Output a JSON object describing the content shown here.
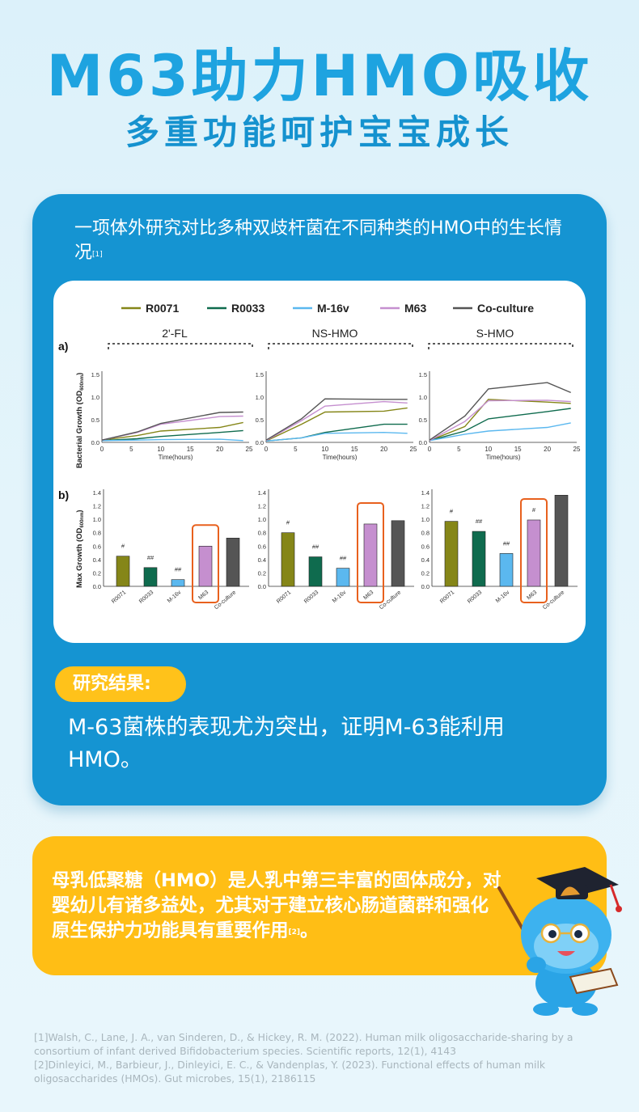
{
  "header": {
    "title": "M63助力HMO吸收",
    "subtitle": "多重功能呵护宝宝成长"
  },
  "study": {
    "intro": "一项体外研究对比多种双歧杆菌在不同种类的HMO中的生长情况",
    "intro_ref": "[1]",
    "result_label": "研究结果:",
    "result_text": "M-63菌株的表现尤为突出，证明M-63能利用HMO。"
  },
  "info": {
    "text": "母乳低聚糖（HMO）是人乳中第三丰富的固体成分，对婴幼儿有诸多益处，尤其对于建立核心肠道菌群和强化原生保护力功能具有重要作用",
    "ref": "[2]",
    "tail": "。"
  },
  "references": [
    "[1]Walsh, C., Lane, J. A., van Sinderen, D., & Hickey, R. M. (2022). Human milk oligosaccharide-sharing by a consortium of infant derived Bifidobacterium species. Scientific reports, 12(1), 4143",
    "[2]Dinleyici, M., Barbieur, J., Dinleyici, E. C., & Vandenplas, Y. (2023). Functional effects of human milk oligosaccharides (HMOs). Gut microbes, 15(1), 2186115"
  ],
  "colors": {
    "R0071": "#858618",
    "R0033": "#0f6b4e",
    "M-16v": "#5bb8ef",
    "M63": "#c58fcf",
    "Co-culture": "#555555",
    "highlight": "#e8611e"
  },
  "chart_data": [
    {
      "type": "line",
      "panel_label": "a)",
      "ylabel": "Bacterial Growth (OD",
      "ylabel_sub": "600nm",
      "ylabel_end": ")",
      "xlabel": "Time(hours)",
      "xticks": [
        0,
        5,
        10,
        15,
        20,
        25
      ],
      "yticks": [
        "0.0",
        "0.5",
        "1.0",
        "1.5"
      ],
      "ylim": [
        0,
        1.5
      ],
      "xlim": [
        0,
        25
      ],
      "legend": [
        "R0071",
        "R0033",
        "M-16v",
        "M63",
        "Co-culture"
      ],
      "legend_position": "top",
      "groups": [
        {
          "name": "2'-FL",
          "x": [
            0,
            6,
            10,
            20,
            24
          ],
          "series": [
            {
              "name": "R0071",
              "values": [
                0.05,
                0.15,
                0.25,
                0.33,
                0.44
              ]
            },
            {
              "name": "R0033",
              "values": [
                0.04,
                0.08,
                0.13,
                0.22,
                0.26
              ]
            },
            {
              "name": "M-16v",
              "values": [
                0.04,
                0.05,
                0.06,
                0.07,
                0.04
              ]
            },
            {
              "name": "M63",
              "values": [
                0.05,
                0.22,
                0.4,
                0.57,
                0.58
              ]
            },
            {
              "name": "Co-culture",
              "values": [
                0.05,
                0.23,
                0.42,
                0.66,
                0.67
              ]
            }
          ]
        },
        {
          "name": "NS-HMO",
          "x": [
            0,
            6,
            10,
            20,
            24
          ],
          "series": [
            {
              "name": "R0071",
              "values": [
                0.03,
                0.4,
                0.67,
                0.69,
                0.76
              ]
            },
            {
              "name": "R0033",
              "values": [
                0.03,
                0.1,
                0.22,
                0.4,
                0.4
              ]
            },
            {
              "name": "M-16v",
              "values": [
                0.03,
                0.1,
                0.2,
                0.22,
                0.2
              ]
            },
            {
              "name": "M63",
              "values": [
                0.04,
                0.48,
                0.8,
                0.9,
                0.87
              ]
            },
            {
              "name": "Co-culture",
              "values": [
                0.05,
                0.52,
                0.96,
                0.95,
                0.95
              ]
            }
          ]
        },
        {
          "name": "S-HMO",
          "x": [
            0,
            6,
            10,
            20,
            24
          ],
          "series": [
            {
              "name": "R0071",
              "values": [
                0.04,
                0.35,
                0.95,
                0.89,
                0.86
              ]
            },
            {
              "name": "R0033",
              "values": [
                0.04,
                0.25,
                0.52,
                0.68,
                0.75
              ]
            },
            {
              "name": "M-16v",
              "values": [
                0.04,
                0.18,
                0.25,
                0.33,
                0.43
              ]
            },
            {
              "name": "M63",
              "values": [
                0.04,
                0.46,
                0.92,
                0.93,
                0.9
              ]
            },
            {
              "name": "Co-culture",
              "values": [
                0.05,
                0.58,
                1.18,
                1.32,
                1.1
              ]
            }
          ]
        }
      ]
    },
    {
      "type": "bar",
      "panel_label": "b)",
      "ylabel": "Max Growth (OD",
      "ylabel_sub": "600nm",
      "ylabel_end": ")",
      "categories": [
        "R0071",
        "R0033",
        "M-16v",
        "M63",
        "Co-culture"
      ],
      "yticks": [
        "0.0",
        "0.2",
        "0.4",
        "0.6",
        "0.8",
        "1.0",
        "1.2",
        "1.4"
      ],
      "ylim": [
        0,
        1.4
      ],
      "highlight_category": "M63",
      "groups": [
        {
          "name": "2'-FL",
          "values": [
            0.45,
            0.28,
            0.1,
            0.6,
            0.72
          ],
          "marks": [
            "#",
            "##",
            "##",
            "",
            ""
          ]
        },
        {
          "name": "NS-HMO",
          "values": [
            0.8,
            0.44,
            0.27,
            0.93,
            0.98
          ],
          "marks": [
            "#",
            "##",
            "##",
            "",
            ""
          ]
        },
        {
          "name": "S-HMO",
          "values": [
            0.97,
            0.82,
            0.49,
            0.99,
            1.36
          ],
          "marks": [
            "#",
            "##",
            "##",
            "#",
            ""
          ]
        }
      ]
    }
  ]
}
